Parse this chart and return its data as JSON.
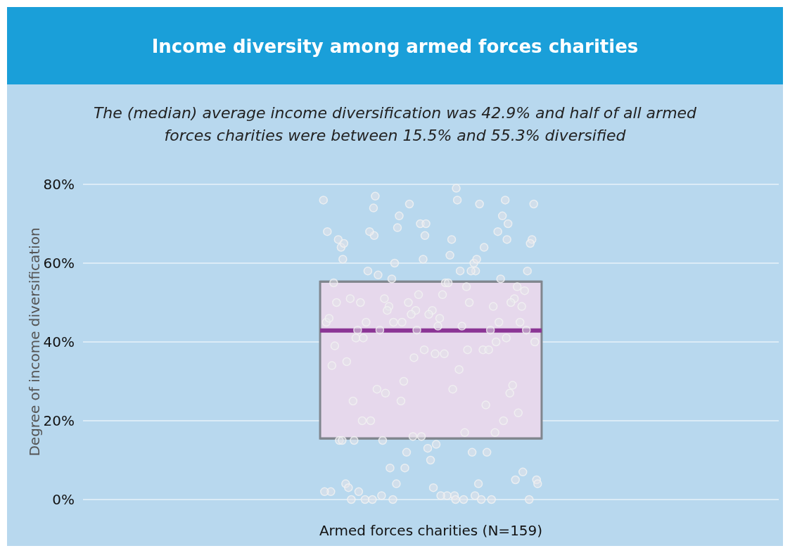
{
  "chart_data": {
    "type": "box",
    "title": "Income diversity among armed forces charities",
    "subtitle": "The (median) average income diversification was 42.9% and half of all armed forces charities were between 15.5% and 55.3% diversified",
    "ylabel": "Degree of income diversification",
    "categories": [
      "Armed forces charities (N=159)"
    ],
    "ylim": [
      0,
      80
    ],
    "yticks": [
      {
        "value": 0,
        "label": "0%"
      },
      {
        "value": 20,
        "label": "20%"
      },
      {
        "value": 40,
        "label": "40%"
      },
      {
        "value": 60,
        "label": "60%"
      },
      {
        "value": 80,
        "label": "80%"
      }
    ],
    "grid": "y",
    "marker": "circle",
    "series": [
      {
        "type": "box",
        "color": "#e6d8ec",
        "boxes": [
          {
            "low": 15.5,
            "q1": 15.5,
            "median": 42.9,
            "q3": 55.3,
            "high": 55.3
          }
        ]
      },
      {
        "type": "scatter",
        "color": "#e4e4ea",
        "x": [
          "Armed forces charities (N=159)",
          "Armed forces charities (N=159)",
          "Armed forces charities (N=159)",
          "Armed forces charities (N=159)",
          "Armed forces charities (N=159)",
          "Armed forces charities (N=159)",
          "Armed forces charities (N=159)",
          "Armed forces charities (N=159)",
          "Armed forces charities (N=159)",
          "Armed forces charities (N=159)",
          "Armed forces charities (N=159)",
          "Armed forces charities (N=159)",
          "Armed forces charities (N=159)",
          "Armed forces charities (N=159)",
          "Armed forces charities (N=159)",
          "Armed forces charities (N=159)",
          "Armed forces charities (N=159)",
          "Armed forces charities (N=159)",
          "Armed forces charities (N=159)",
          "Armed forces charities (N=159)",
          "Armed forces charities (N=159)",
          "Armed forces charities (N=159)",
          "Armed forces charities (N=159)",
          "Armed forces charities (N=159)",
          "Armed forces charities (N=159)",
          "Armed forces charities (N=159)",
          "Armed forces charities (N=159)",
          "Armed forces charities (N=159)",
          "Armed forces charities (N=159)",
          "Armed forces charities (N=159)",
          "Armed forces charities (N=159)",
          "Armed forces charities (N=159)",
          "Armed forces charities (N=159)",
          "Armed forces charities (N=159)",
          "Armed forces charities (N=159)",
          "Armed forces charities (N=159)",
          "Armed forces charities (N=159)",
          "Armed forces charities (N=159)",
          "Armed forces charities (N=159)",
          "Armed forces charities (N=159)",
          "Armed forces charities (N=159)",
          "Armed forces charities (N=159)",
          "Armed forces charities (N=159)",
          "Armed forces charities (N=159)",
          "Armed forces charities (N=159)",
          "Armed forces charities (N=159)",
          "Armed forces charities (N=159)",
          "Armed forces charities (N=159)",
          "Armed forces charities (N=159)",
          "Armed forces charities (N=159)",
          "Armed forces charities (N=159)",
          "Armed forces charities (N=159)",
          "Armed forces charities (N=159)",
          "Armed forces charities (N=159)",
          "Armed forces charities (N=159)",
          "Armed forces charities (N=159)",
          "Armed forces charities (N=159)",
          "Armed forces charities (N=159)",
          "Armed forces charities (N=159)",
          "Armed forces charities (N=159)",
          "Armed forces charities (N=159)",
          "Armed forces charities (N=159)",
          "Armed forces charities (N=159)",
          "Armed forces charities (N=159)",
          "Armed forces charities (N=159)",
          "Armed forces charities (N=159)",
          "Armed forces charities (N=159)",
          "Armed forces charities (N=159)",
          "Armed forces charities (N=159)",
          "Armed forces charities (N=159)",
          "Armed forces charities (N=159)",
          "Armed forces charities (N=159)",
          "Armed forces charities (N=159)",
          "Armed forces charities (N=159)",
          "Armed forces charities (N=159)",
          "Armed forces charities (N=159)",
          "Armed forces charities (N=159)",
          "Armed forces charities (N=159)",
          "Armed forces charities (N=159)",
          "Armed forces charities (N=159)",
          "Armed forces charities (N=159)",
          "Armed forces charities (N=159)",
          "Armed forces charities (N=159)",
          "Armed forces charities (N=159)",
          "Armed forces charities (N=159)",
          "Armed forces charities (N=159)",
          "Armed forces charities (N=159)",
          "Armed forces charities (N=159)",
          "Armed forces charities (N=159)",
          "Armed forces charities (N=159)",
          "Armed forces charities (N=159)",
          "Armed forces charities (N=159)",
          "Armed forces charities (N=159)",
          "Armed forces charities (N=159)",
          "Armed forces charities (N=159)",
          "Armed forces charities (N=159)",
          "Armed forces charities (N=159)",
          "Armed forces charities (N=159)",
          "Armed forces charities (N=159)",
          "Armed forces charities (N=159)",
          "Armed forces charities (N=159)",
          "Armed forces charities (N=159)",
          "Armed forces charities (N=159)",
          "Armed forces charities (N=159)",
          "Armed forces charities (N=159)",
          "Armed forces charities (N=159)",
          "Armed forces charities (N=159)",
          "Armed forces charities (N=159)",
          "Armed forces charities (N=159)",
          "Armed forces charities (N=159)",
          "Armed forces charities (N=159)",
          "Armed forces charities (N=159)",
          "Armed forces charities (N=159)",
          "Armed forces charities (N=159)",
          "Armed forces charities (N=159)",
          "Armed forces charities (N=159)",
          "Armed forces charities (N=159)",
          "Armed forces charities (N=159)",
          "Armed forces charities (N=159)",
          "Armed forces charities (N=159)",
          "Armed forces charities (N=159)",
          "Armed forces charities (N=159)",
          "Armed forces charities (N=159)",
          "Armed forces charities (N=159)",
          "Armed forces charities (N=159)",
          "Armed forces charities (N=159)",
          "Armed forces charities (N=159)",
          "Armed forces charities (N=159)",
          "Armed forces charities (N=159)",
          "Armed forces charities (N=159)",
          "Armed forces charities (N=159)",
          "Armed forces charities (N=159)",
          "Armed forces charities (N=159)",
          "Armed forces charities (N=159)",
          "Armed forces charities (N=159)",
          "Armed forces charities (N=159)",
          "Armed forces charities (N=159)",
          "Armed forces charities (N=159)",
          "Armed forces charities (N=159)",
          "Armed forces charities (N=159)",
          "Armed forces charities (N=159)",
          "Armed forces charities (N=159)",
          "Armed forces charities (N=159)",
          "Armed forces charities (N=159)",
          "Armed forces charities (N=159)",
          "Armed forces charities (N=159)",
          "Armed forces charities (N=159)",
          "Armed forces charities (N=159)",
          "Armed forces charities (N=159)",
          "Armed forces charities (N=159)",
          "Armed forces charities (N=159)",
          "Armed forces charities (N=159)"
        ],
        "values": [
          76,
          79,
          67,
          66,
          67,
          61,
          58,
          45,
          43,
          37,
          20,
          17,
          16,
          2,
          0,
          1,
          51,
          48,
          51,
          38,
          25,
          75,
          66,
          68,
          72,
          70,
          66,
          58,
          49,
          49,
          46,
          43,
          43,
          50,
          45,
          33,
          28,
          27,
          13,
          4,
          4,
          4,
          0,
          1,
          0,
          68,
          48,
          55,
          54,
          51,
          54,
          37,
          25,
          24,
          30,
          5,
          1,
          0,
          76,
          61,
          64,
          60,
          56,
          53,
          52,
          50,
          49,
          47,
          46,
          44,
          43,
          29,
          10,
          3,
          0,
          72,
          66,
          62,
          58,
          56,
          52,
          50,
          50,
          48,
          45,
          44,
          41,
          38,
          12,
          2,
          76,
          77,
          70,
          70,
          65,
          61,
          60,
          58,
          55,
          41,
          40,
          36,
          34,
          17,
          15,
          5,
          3,
          0,
          64,
          45,
          40,
          28,
          20,
          20,
          16,
          15,
          12,
          8,
          7,
          1,
          2,
          0,
          75,
          68,
          58,
          57,
          50,
          47,
          35,
          75,
          69,
          65,
          55,
          45,
          45,
          43,
          39,
          38,
          27,
          22,
          14,
          15,
          12,
          8,
          4,
          0,
          74,
          41,
          38,
          15,
          1,
          0
        ]
      }
    ]
  }
}
